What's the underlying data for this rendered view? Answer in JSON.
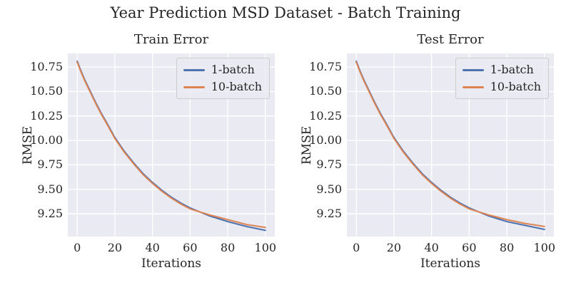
{
  "figure": {
    "suptitle": "Year Prediction MSD Dataset - Batch Training",
    "background_color": "#ffffff",
    "text_color": "#262626"
  },
  "style": {
    "axes_background": "#eaeaf2",
    "grid_color": "#ffffff",
    "legend_background": "#eaeaf2",
    "legend_border": "#cccccc",
    "series_blue": "#4c72b0",
    "series_orange": "#dd8452"
  },
  "chart_data": [
    {
      "type": "line",
      "title": "Train Error",
      "xlabel": "Iterations",
      "ylabel": "RMSE",
      "xlim": [
        -5,
        105
      ],
      "ylim": [
        9.017,
        10.889
      ],
      "xticks": [
        0,
        20,
        40,
        60,
        80,
        100
      ],
      "xtick_labels": [
        "0",
        "20",
        "40",
        "60",
        "80",
        "100"
      ],
      "yticks": [
        10.75,
        10.5,
        10.25,
        10.0,
        9.75,
        9.5,
        9.25
      ],
      "ytick_labels": [
        "10.75",
        "10.50",
        "10.25",
        "10.00",
        "9.75",
        "9.50",
        "9.25"
      ],
      "grid": true,
      "legend_position": "upper right",
      "x": [
        0,
        2,
        4,
        6,
        8,
        10,
        13,
        16,
        20,
        25,
        30,
        35,
        40,
        45,
        50,
        55,
        60,
        70,
        80,
        90,
        100
      ],
      "series": [
        {
          "name": "1-batch",
          "color": "#4c72b0",
          "values": [
            10.81,
            10.71,
            10.62,
            10.54,
            10.46,
            10.38,
            10.27,
            10.17,
            10.03,
            9.89,
            9.77,
            9.66,
            9.57,
            9.49,
            9.42,
            9.36,
            9.31,
            9.23,
            9.17,
            9.12,
            9.08
          ]
        },
        {
          "name": "10-batch",
          "color": "#dd8452",
          "values": [
            10.8,
            10.7,
            10.61,
            10.53,
            10.45,
            10.37,
            10.26,
            10.16,
            10.02,
            9.88,
            9.76,
            9.65,
            9.56,
            9.48,
            9.41,
            9.35,
            9.3,
            9.24,
            9.19,
            9.14,
            9.11
          ]
        }
      ]
    },
    {
      "type": "line",
      "title": "Test Error",
      "xlabel": "Iterations",
      "ylabel": "RMSE",
      "xlim": [
        -5,
        105
      ],
      "ylim": [
        9.017,
        10.889
      ],
      "xticks": [
        0,
        20,
        40,
        60,
        80,
        100
      ],
      "xtick_labels": [
        "0",
        "20",
        "40",
        "60",
        "80",
        "100"
      ],
      "yticks": [
        10.75,
        10.5,
        10.25,
        10.0,
        9.75,
        9.5,
        9.25
      ],
      "ytick_labels": [
        "10.75",
        "10.50",
        "10.25",
        "10.00",
        "9.75",
        "9.50",
        "9.25"
      ],
      "grid": true,
      "legend_position": "upper right",
      "x": [
        0,
        2,
        4,
        6,
        8,
        10,
        13,
        16,
        20,
        25,
        30,
        35,
        40,
        45,
        50,
        55,
        60,
        70,
        80,
        90,
        100
      ],
      "series": [
        {
          "name": "1-batch",
          "color": "#4c72b0",
          "values": [
            10.81,
            10.71,
            10.62,
            10.54,
            10.46,
            10.38,
            10.27,
            10.17,
            10.03,
            9.89,
            9.77,
            9.66,
            9.57,
            9.49,
            9.42,
            9.36,
            9.31,
            9.23,
            9.17,
            9.13,
            9.09
          ]
        },
        {
          "name": "10-batch",
          "color": "#dd8452",
          "values": [
            10.8,
            10.7,
            10.61,
            10.53,
            10.45,
            10.37,
            10.26,
            10.16,
            10.02,
            9.88,
            9.76,
            9.65,
            9.56,
            9.48,
            9.41,
            9.35,
            9.3,
            9.24,
            9.19,
            9.15,
            9.12
          ]
        }
      ]
    }
  ]
}
